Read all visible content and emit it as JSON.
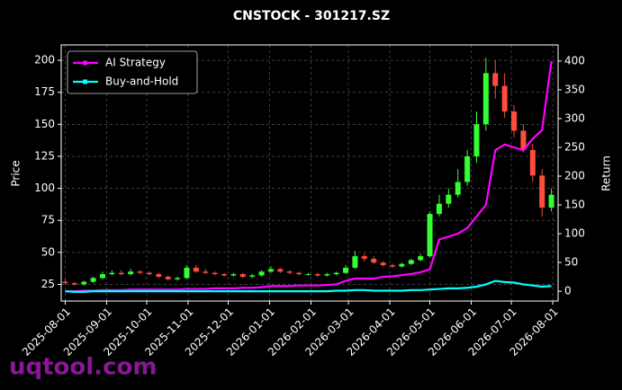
{
  "chart_data": {
    "type": "candlestick",
    "title": "CNSTOCK - 301217.SZ",
    "ylabel": "Price",
    "y2label": "Return",
    "x": [
      "2025-08-01",
      "2025-08-08",
      "2025-08-15",
      "2025-08-22",
      "2025-08-29",
      "2025-09-05",
      "2025-09-12",
      "2025-09-19",
      "2025-09-26",
      "2025-10-03",
      "2025-10-10",
      "2025-10-17",
      "2025-10-24",
      "2025-10-31",
      "2025-11-07",
      "2025-11-14",
      "2025-11-21",
      "2025-11-28",
      "2025-12-05",
      "2025-12-12",
      "2025-12-19",
      "2025-12-26",
      "2026-01-02",
      "2026-01-09",
      "2026-01-16",
      "2026-01-23",
      "2026-01-30",
      "2026-02-06",
      "2026-02-13",
      "2026-02-20",
      "2026-02-27",
      "2026-03-06",
      "2026-03-13",
      "2026-03-20",
      "2026-03-27",
      "2026-04-03",
      "2026-04-10",
      "2026-04-17",
      "2026-04-24",
      "2026-05-01",
      "2026-05-08",
      "2026-05-15",
      "2026-05-22",
      "2026-05-29",
      "2026-06-05",
      "2026-06-12",
      "2026-06-19",
      "2026-06-26",
      "2026-07-03",
      "2026-07-10",
      "2026-07-17",
      "2026-07-24",
      "2026-07-31"
    ],
    "open": [
      27,
      26,
      25,
      27,
      30,
      33,
      34,
      33,
      35,
      34,
      33,
      31,
      29,
      30,
      38,
      35,
      34,
      33,
      32,
      33,
      31,
      32,
      35,
      37,
      35,
      34,
      33,
      33,
      32,
      33,
      34,
      38,
      47,
      45,
      42,
      40,
      39,
      41,
      44,
      47,
      80,
      88,
      95,
      105,
      125,
      150,
      190,
      180,
      160,
      145,
      130,
      110,
      85
    ],
    "high": [
      29,
      27,
      28,
      31,
      35,
      36,
      36,
      37,
      36,
      35,
      34,
      32,
      31,
      40,
      40,
      37,
      35,
      34,
      34,
      34,
      33,
      36,
      39,
      38,
      36,
      35,
      34,
      34,
      34,
      35,
      40,
      51,
      49,
      47,
      43,
      41,
      42,
      45,
      49,
      82,
      95,
      100,
      115,
      130,
      160,
      202,
      200,
      190,
      165,
      150,
      135,
      115,
      100
    ],
    "low": [
      25,
      24,
      24,
      26,
      29,
      32,
      32,
      32,
      33,
      32,
      30,
      28,
      28,
      29,
      34,
      33,
      32,
      31,
      31,
      30,
      30,
      31,
      34,
      34,
      33,
      32,
      32,
      31,
      31,
      32,
      33,
      37,
      43,
      41,
      39,
      38,
      38,
      40,
      43,
      46,
      78,
      85,
      93,
      102,
      120,
      145,
      170,
      155,
      140,
      128,
      105,
      78,
      82
    ],
    "close": [
      26,
      25,
      27,
      30,
      33,
      34,
      33,
      35,
      34,
      33,
      31,
      29,
      30,
      38,
      35,
      34,
      33,
      32,
      33,
      31,
      32,
      35,
      37,
      35,
      34,
      33,
      33,
      32,
      33,
      34,
      38,
      47,
      45,
      42,
      40,
      39,
      41,
      44,
      47,
      80,
      88,
      95,
      105,
      125,
      150,
      190,
      180,
      160,
      145,
      130,
      110,
      85,
      95
    ],
    "up_color": "#33ff33",
    "down_color": "#ff4d3d",
    "series": [
      {
        "name": "AI Strategy",
        "color": "#ff00ff",
        "axis": "y2",
        "values": [
          0,
          0,
          1,
          1,
          2,
          2,
          2,
          3,
          3,
          3,
          3,
          3,
          3,
          4,
          4,
          4,
          5,
          5,
          5,
          6,
          6,
          7,
          9,
          9,
          9,
          10,
          10,
          10,
          11,
          12,
          18,
          22,
          22,
          22,
          25,
          26,
          28,
          30,
          33,
          38,
          90,
          95,
          100,
          110,
          130,
          150,
          245,
          255,
          250,
          245,
          265,
          280,
          400
        ]
      },
      {
        "name": "Buy-and-Hold",
        "color": "#00ffff",
        "axis": "y2",
        "values": [
          0,
          -1,
          -1,
          0,
          0,
          0,
          0,
          0,
          0,
          0,
          0,
          0,
          0,
          0,
          0,
          0,
          0,
          0,
          0,
          0,
          0,
          0,
          0,
          0,
          0,
          0,
          0,
          0,
          0,
          1,
          1,
          2,
          2,
          1,
          1,
          1,
          1,
          2,
          2,
          3,
          4,
          5,
          5,
          6,
          8,
          12,
          18,
          16,
          15,
          12,
          10,
          8,
          9
        ]
      }
    ],
    "xlim": [
      "2025-07-29",
      "2026-08-05"
    ],
    "xticks": [
      "2025-08-01",
      "2025-09-01",
      "2025-10-01",
      "2025-11-01",
      "2025-12-01",
      "2026-01-01",
      "2026-02-01",
      "2026-03-01",
      "2026-04-01",
      "2026-05-01",
      "2026-06-01",
      "2026-07-01",
      "2026-08-01"
    ],
    "ylim": [
      12,
      212
    ],
    "yticks": [
      25,
      50,
      75,
      100,
      125,
      150,
      175,
      200
    ],
    "y2lim": [
      -17,
      428
    ],
    "y2ticks": [
      0,
      50,
      100,
      150,
      200,
      250,
      300,
      350,
      400
    ],
    "grid": true,
    "legend": "upper left"
  },
  "watermark": "uqtool.com"
}
